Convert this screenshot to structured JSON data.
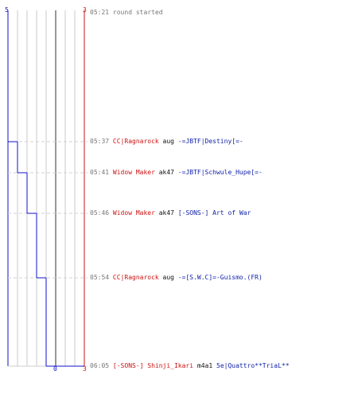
{
  "colors": {
    "team_blue": "#1111cc",
    "team_red": "#cc1111",
    "grid_light": "#c8c8c8",
    "grid_dark": "#777777",
    "time_text": "#777777",
    "weapon_text": "#111111",
    "victim_text": "#1122aa"
  },
  "score_panel": {
    "blue_top_label": "5",
    "red_top_label": "3",
    "blue_bottom_label": "0",
    "red_bottom_label": "3"
  },
  "events": [
    {
      "time": "05:21",
      "type": "status",
      "text": "round started"
    },
    {
      "time": "05:37",
      "type": "kill",
      "killer": "CC|Ragnarock",
      "weapon": "aug",
      "victim": "-=JBTF|Destiny[=-"
    },
    {
      "time": "05:41",
      "type": "kill",
      "killer": "Widow Maker",
      "weapon": "ak47",
      "victim": "-=JBTF|Schwule_Hupe[=-"
    },
    {
      "time": "05:46",
      "type": "kill",
      "killer": "Widow Maker",
      "weapon": "ak47",
      "victim": "[-SONS-] Art of War"
    },
    {
      "time": "05:54",
      "type": "kill",
      "killer": "CC|Ragnarock",
      "weapon": "aug",
      "victim": "-=[S.W.C]=-Guismo.(FR)"
    },
    {
      "time": "06:05",
      "type": "kill",
      "killer": "[-SONS-] Shinji_Ikari",
      "weapon": "m4a1",
      "victim": "5e|Quattro**TriaL**"
    }
  ]
}
